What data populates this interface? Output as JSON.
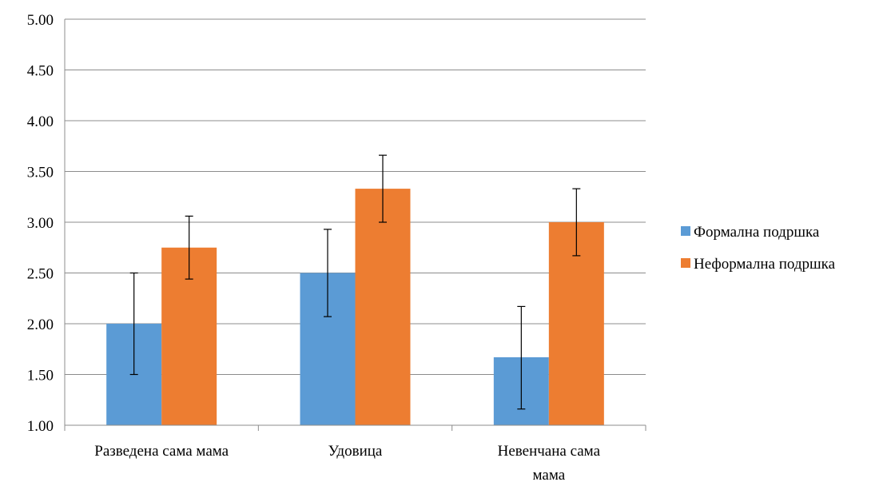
{
  "chart_data": {
    "type": "bar",
    "title": "",
    "xlabel": "",
    "ylabel": "",
    "ylim": [
      1.0,
      5.0
    ],
    "ytick_step": 0.5,
    "yticks": [
      "1.00",
      "1.50",
      "2.00",
      "2.50",
      "3.00",
      "3.50",
      "4.00",
      "4.50",
      "5.00"
    ],
    "grid": true,
    "legend_position": "right",
    "categories": [
      {
        "lines": [
          "Разведена сама мама"
        ]
      },
      {
        "lines": [
          "Удовица"
        ]
      },
      {
        "lines": [
          "Невенчана сама",
          "мама"
        ]
      }
    ],
    "series": [
      {
        "name": "Формална подршка",
        "color": "#5B9BD5",
        "values": [
          2.0,
          2.5,
          1.67
        ],
        "error_low": [
          1.5,
          2.07,
          1.16
        ],
        "error_high": [
          2.5,
          2.93,
          2.17
        ]
      },
      {
        "name": "Неформална подршка",
        "color": "#ED7D31",
        "values": [
          2.75,
          3.33,
          3.0
        ],
        "error_low": [
          2.44,
          3.0,
          2.67
        ],
        "error_high": [
          3.06,
          3.66,
          3.33
        ]
      }
    ]
  }
}
